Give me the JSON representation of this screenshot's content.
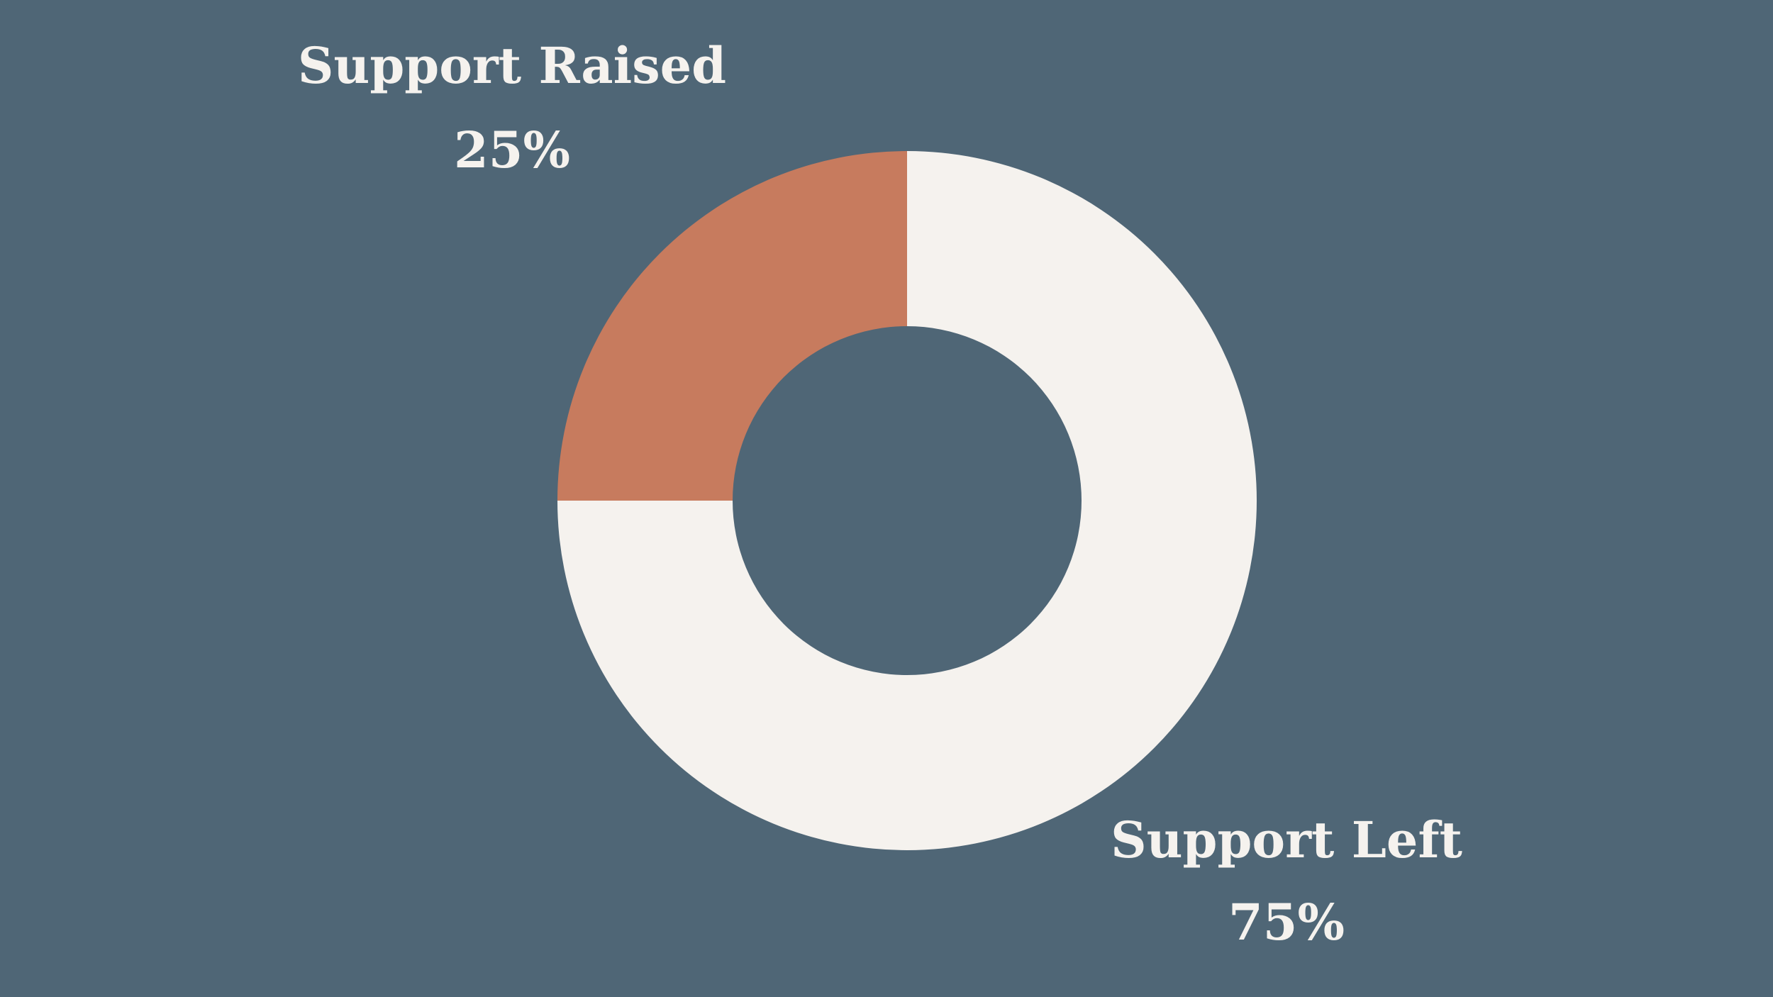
{
  "chart_data": {
    "type": "donut",
    "categories": [
      "Support Raised",
      "Support Left"
    ],
    "values": [
      25,
      75
    ],
    "value_labels": [
      "25%",
      "75%"
    ],
    "colors": [
      "#c77b5e",
      "#f5f2ee"
    ]
  }
}
